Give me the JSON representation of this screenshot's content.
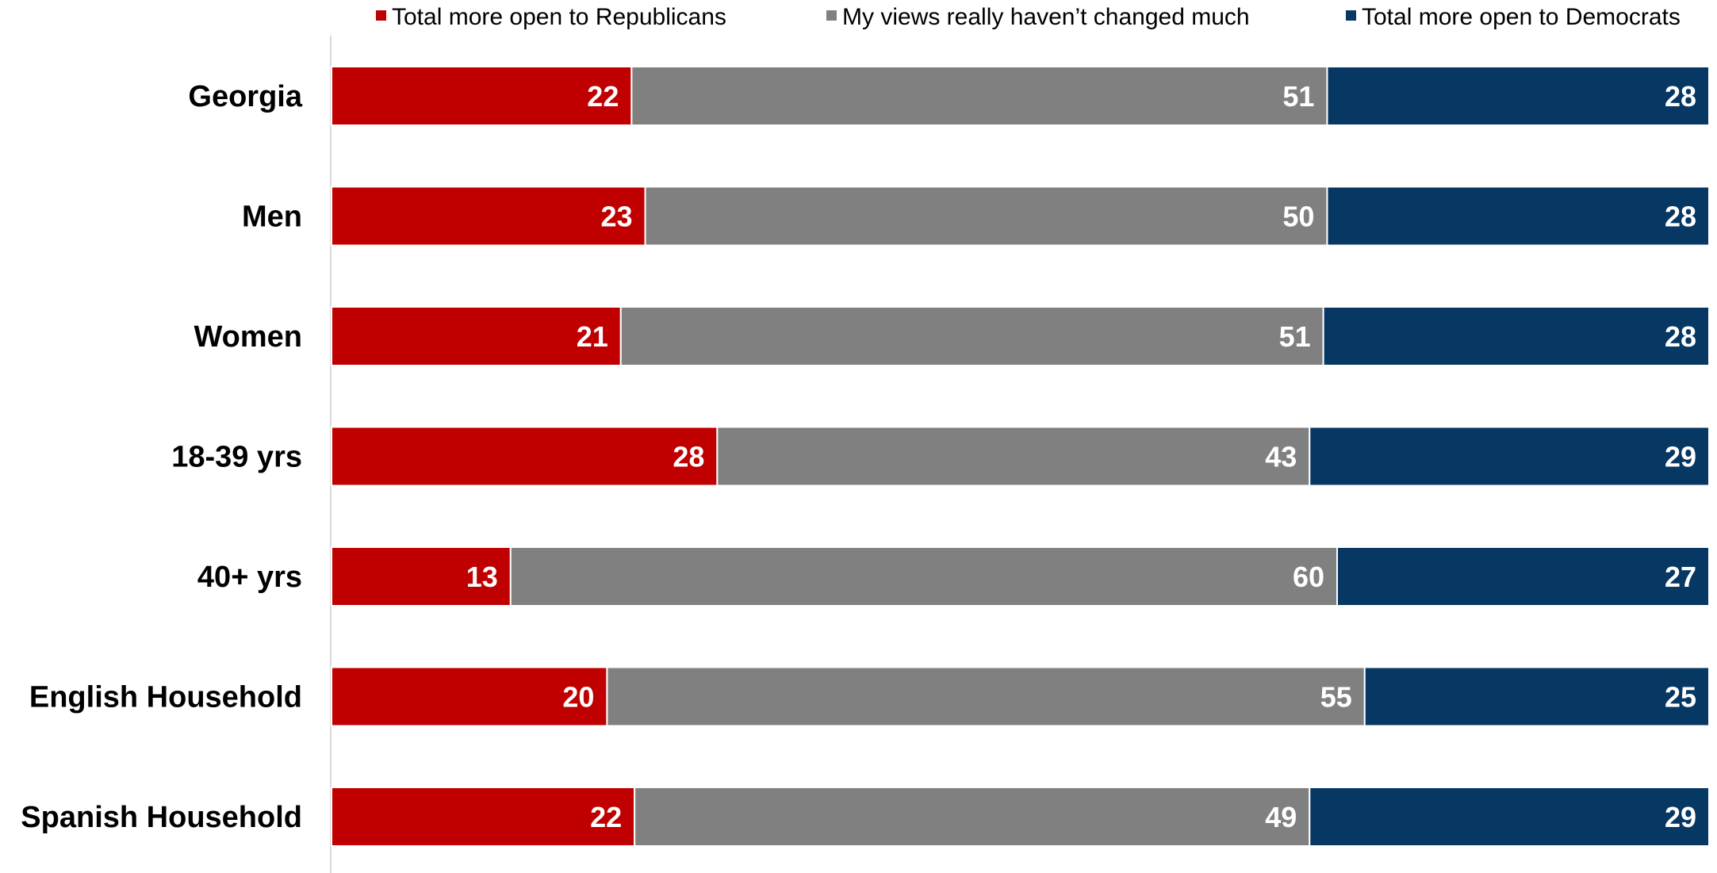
{
  "chart_data": {
    "type": "bar",
    "orientation": "horizontal",
    "stacked": true,
    "categories": [
      "Georgia",
      "Men",
      "Women",
      "18-39 yrs",
      "40+ yrs",
      "English Household",
      "Spanish Household"
    ],
    "series": [
      {
        "name": "Total more open to Republicans",
        "color": "#c00000",
        "values": [
          22,
          23,
          21,
          28,
          13,
          20,
          22
        ]
      },
      {
        "name": "My views really haven’t changed much",
        "color": "#808080",
        "values": [
          51,
          50,
          51,
          43,
          60,
          55,
          49
        ]
      },
      {
        "name": "Total more open to Democrats",
        "color": "#073763",
        "values": [
          28,
          28,
          28,
          29,
          27,
          25,
          29
        ]
      }
    ],
    "legend_position": "top",
    "grid": false
  }
}
